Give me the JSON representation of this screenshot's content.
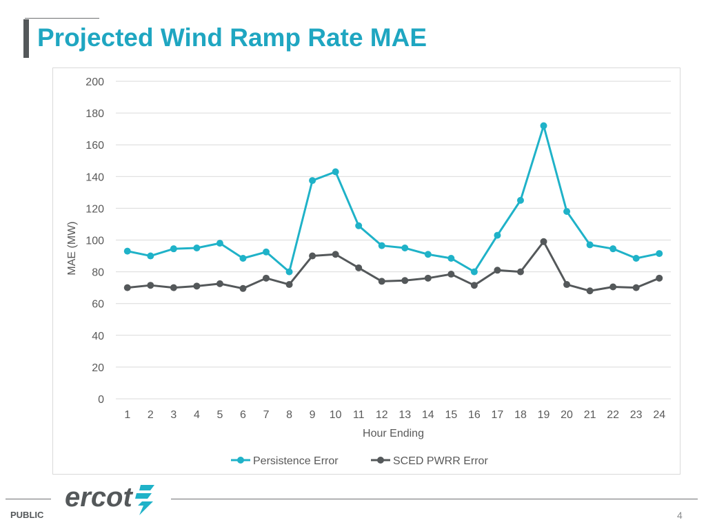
{
  "slide": {
    "title": "Projected Wind Ramp Rate MAE",
    "classification": "PUBLIC",
    "page_number": "4",
    "logo_text": "ercot"
  },
  "colors": {
    "title": "#1fa6c1",
    "persistence": "#1fb2c8",
    "sced": "#54585a",
    "grid": "#d9d9d9",
    "axis_text": "#595959"
  },
  "chart_data": {
    "type": "line",
    "title": "",
    "xlabel": "Hour Ending",
    "ylabel": "MAE (MW)",
    "ylim": [
      0,
      200
    ],
    "yticks": [
      0,
      20,
      40,
      60,
      80,
      100,
      120,
      140,
      160,
      180,
      200
    ],
    "categories": [
      "1",
      "2",
      "3",
      "4",
      "5",
      "6",
      "7",
      "8",
      "9",
      "10",
      "11",
      "12",
      "13",
      "14",
      "15",
      "16",
      "17",
      "18",
      "19",
      "20",
      "21",
      "22",
      "23",
      "24"
    ],
    "series": [
      {
        "name": "Persistence Error",
        "color": "#1fb2c8",
        "values": [
          93,
          90,
          94.5,
          95,
          98,
          88.5,
          92.5,
          80,
          137.5,
          143,
          109,
          96.5,
          95,
          91,
          88.5,
          80,
          103,
          125,
          172,
          118,
          97,
          94.5,
          88.5,
          91.5
        ]
      },
      {
        "name": "SCED PWRR Error",
        "color": "#54585a",
        "values": [
          70,
          71.5,
          70,
          71,
          72.5,
          69.5,
          76,
          72,
          90,
          91,
          82.5,
          74,
          74.5,
          76,
          78.5,
          71.5,
          81,
          80,
          99,
          72,
          68,
          70.5,
          70,
          76
        ]
      }
    ],
    "legend_position": "bottom-center"
  }
}
